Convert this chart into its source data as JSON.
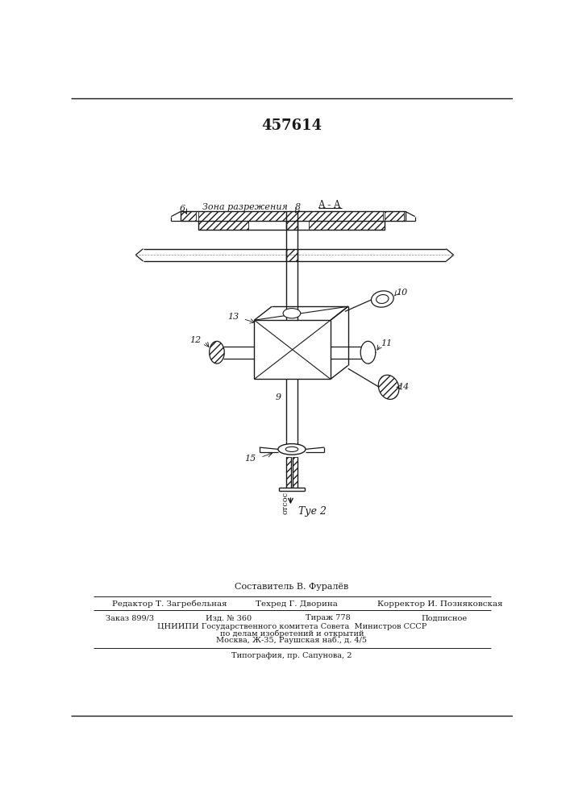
{
  "title": "457614",
  "section_label": "A - A",
  "zone_label_6": "6",
  "zone_label_text": "Зона разрежения",
  "num8": "8",
  "num9": "9",
  "num10": "10",
  "num11": "11",
  "num12": "12",
  "num13": "13",
  "num14": "14",
  "num15": "15",
  "otsoc": "отсос",
  "fig2": "Τуе 2",
  "footer_composer": "Составитель В. Фуралёв",
  "footer_editor": "Редактор Т. Загребельная",
  "footer_techred": "Техред Г. Дворина",
  "footer_corrector": "Корректор И. Позняковская",
  "footer_order": "Заказ 899/3",
  "footer_izd": "Изд. № 360",
  "footer_tirazh": "Тираж 778",
  "footer_podpisnoe": "Подписное",
  "footer_cniip": "ЦНИИПИ Государственного комитета Совета  Министров СССР",
  "footer_dela": "по делам изобретений и открытий",
  "footer_moscow": "Москва, Ж-35, Раушская наб., д. 4/5",
  "footer_tipografia": "Типография, пр. Сапунова, 2",
  "bg_color": "#ffffff",
  "line_color": "#1a1a1a"
}
